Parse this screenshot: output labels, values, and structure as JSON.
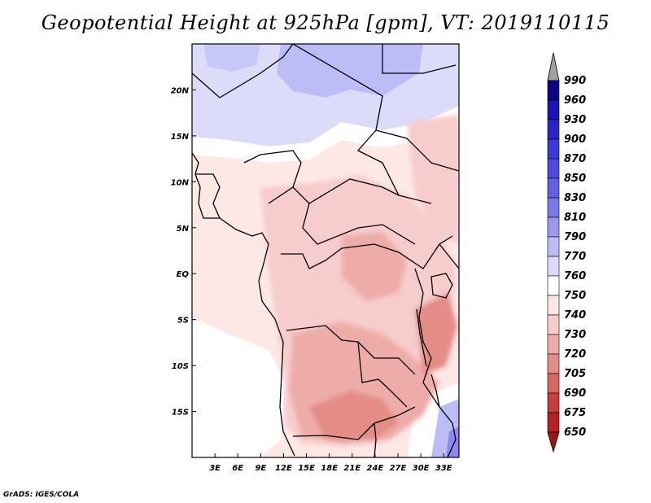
{
  "title": "Geopotential Height at 925hPa [gpm], VT: 2019110115",
  "footer": "GrADS: IGES/COLA",
  "map": {
    "lon_range": [
      0,
      35
    ],
    "lat_range": [
      -20,
      25
    ],
    "lat_ticks": [
      "20N",
      "15N",
      "10N",
      "5N",
      "EQ",
      "5S",
      "10S",
      "15S"
    ],
    "lon_ticks": [
      "3E",
      "6E",
      "9E",
      "12E",
      "15E",
      "18E",
      "21E",
      "24E",
      "27E",
      "30E",
      "33E"
    ]
  },
  "colorbar": {
    "labels": [
      "990",
      "960",
      "930",
      "900",
      "870",
      "850",
      "830",
      "810",
      "790",
      "770",
      "760",
      "750",
      "740",
      "730",
      "720",
      "705",
      "690",
      "675",
      "650"
    ],
    "colors": [
      "#0c0488",
      "#1a14b2",
      "#2a26c6",
      "#3a38d6",
      "#4d4ce0",
      "#6260e6",
      "#7a78ea",
      "#9a98f0",
      "#bcbcf6",
      "#dcdcfa",
      "#ffffff",
      "#fce6e4",
      "#f6cccc",
      "#eeaca8",
      "#e48c86",
      "#d86864",
      "#c8403e",
      "#b42226",
      "#a01418"
    ],
    "top_arrow_color": "#a0a0a0"
  }
}
